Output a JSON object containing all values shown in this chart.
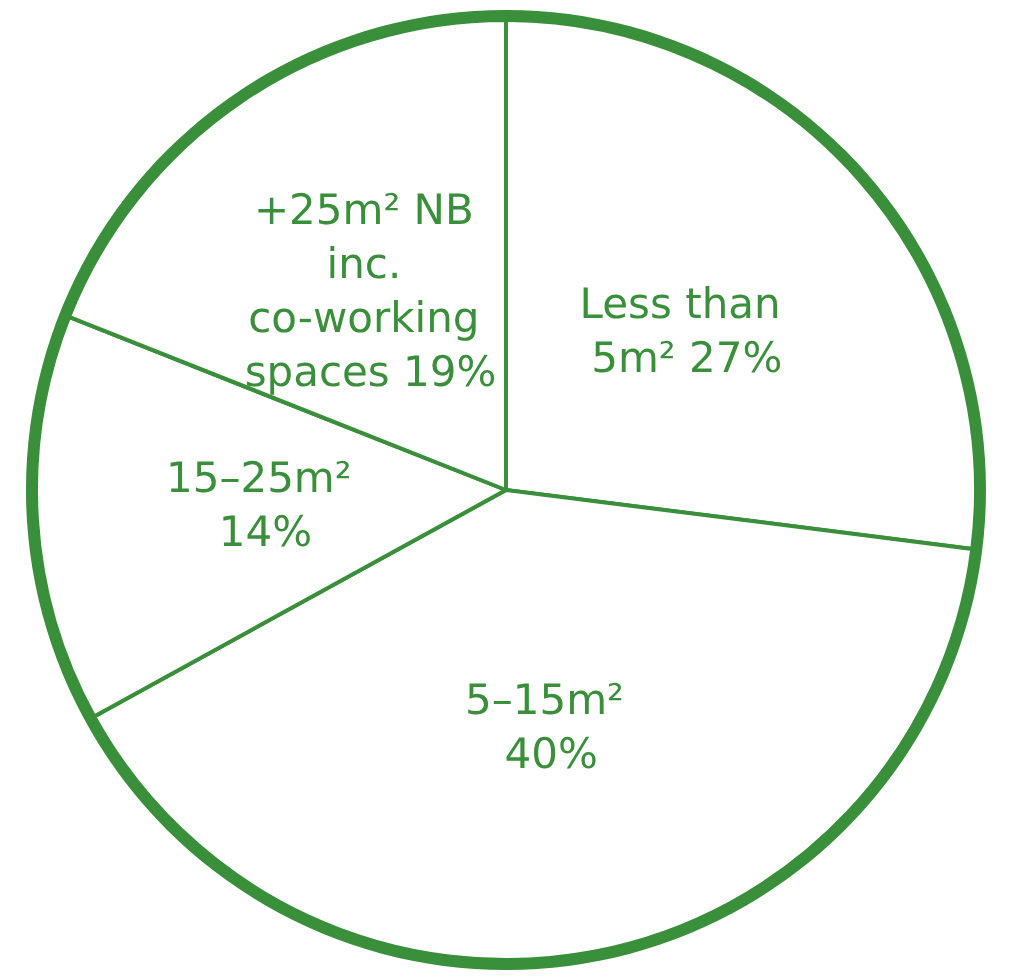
{
  "chart_data": {
    "type": "pie",
    "categories": [
      "Less than 5m²",
      "5–15m²",
      "15–25m²",
      "+25m² NB inc. co-working spaces"
    ],
    "values": [
      27,
      40,
      14,
      19
    ],
    "value_labels": [
      "27%",
      "40%",
      "14%",
      "19%"
    ],
    "colors": [
      "#ffffff",
      "#ffffff",
      "#ffffff",
      "#ffffff"
    ]
  }
}
